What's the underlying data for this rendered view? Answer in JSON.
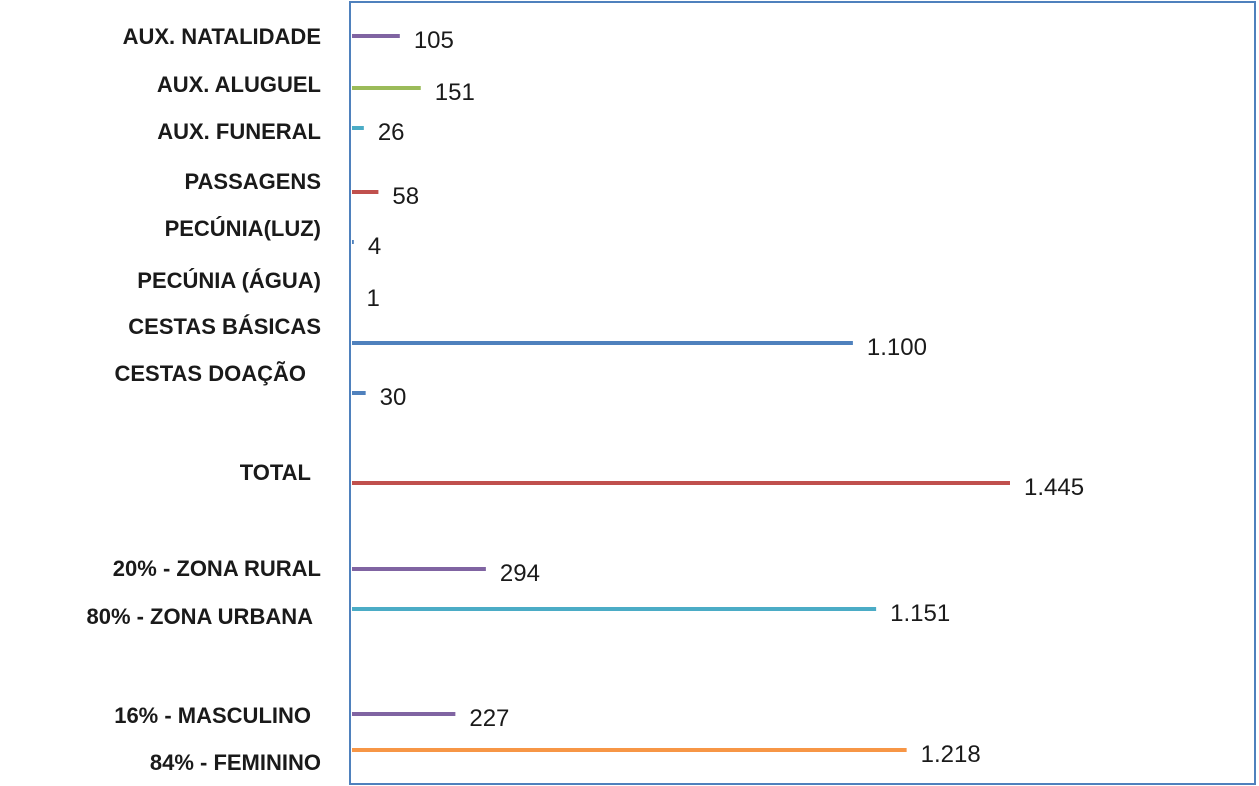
{
  "chart_data": {
    "type": "bar",
    "orientation": "horizontal",
    "title": "",
    "xlabel": "",
    "ylabel": "",
    "grid": false,
    "legend": "none",
    "xlim": [
      0,
      1500
    ],
    "categories": [
      "AUX. NATALIDADE",
      "AUX. ALUGUEL",
      "AUX. FUNERAL",
      "PASSAGENS",
      "PECÚNIA(LUZ)",
      "PECÚNIA (ÁGUA)",
      "CESTAS BÁSICAS",
      "CESTAS DOAÇÃO",
      "TOTAL",
      "20% - ZONA RURAL",
      "80% - ZONA URBANA",
      "16% - MASCULINO",
      "84% - FEMININO"
    ],
    "values": [
      105,
      151,
      26,
      58,
      4,
      1,
      1100,
      30,
      1445,
      294,
      1151,
      227,
      1218
    ],
    "value_labels": [
      "105",
      "151",
      "26",
      "58",
      "4",
      "1",
      "1.100",
      "30",
      "1.445",
      "294",
      "1.151",
      "227",
      "1.218"
    ],
    "colors": [
      "#8064A2",
      "#9BBB59",
      "#4BACC6",
      "#C0504D",
      "#4F81BD",
      "#4F81BD",
      "#4F81BD",
      "#4F81BD",
      "#C0504D",
      "#8064A2",
      "#4BACC6",
      "#8064A2",
      "#F79646"
    ]
  }
}
